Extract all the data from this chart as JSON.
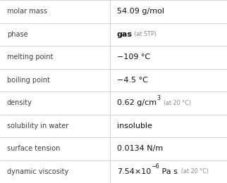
{
  "rows": [
    {
      "label": "molar mass",
      "value": "54.09 g/mol",
      "type": "simple"
    },
    {
      "label": "phase",
      "value": "gas",
      "suffix": " (at STP)",
      "type": "suffix"
    },
    {
      "label": "melting point",
      "value": "−109 °C",
      "type": "simple"
    },
    {
      "label": "boiling point",
      "value": "−4.5 °C",
      "type": "simple"
    },
    {
      "label": "density",
      "value": "0.62 g/cm",
      "superscript": "3",
      "suffix": "  (at 20 °C)",
      "type": "super"
    },
    {
      "label": "solubility in water",
      "value": "insoluble",
      "type": "simple"
    },
    {
      "label": "surface tension",
      "value": "0.0134 N/m",
      "type": "simple"
    },
    {
      "label": "dynamic viscosity",
      "value": "7.54×10",
      "exp": "−6",
      "suffix": " Pa s",
      "suffix2": "  (at 20 °C)",
      "type": "exp"
    }
  ],
  "bg_color": "#ffffff",
  "line_color": "#cccccc",
  "label_color": "#404040",
  "value_color": "#111111",
  "small_color": "#888888",
  "col_split": 0.485,
  "label_fs": 7.0,
  "value_fs": 8.0,
  "small_fs": 5.8,
  "super_fs": 5.8
}
